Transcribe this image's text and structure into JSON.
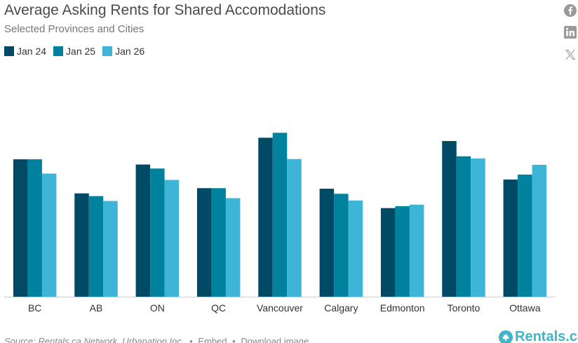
{
  "header": {
    "title": "Average Asking Rents for Shared Accomodations",
    "subtitle": "Selected Provinces and Cities"
  },
  "legend": [
    {
      "label": "Jan 24",
      "color": "#004a66"
    },
    {
      "label": "Jan 25",
      "color": "#00829e"
    },
    {
      "label": "Jan 26",
      "color": "#3eb5d6"
    }
  ],
  "share": {
    "facebook_icon": "facebook-icon",
    "linkedin_icon": "linkedin-icon",
    "x_icon": "x-icon"
  },
  "chart_data": {
    "type": "bar",
    "title": "Average Asking Rents for Shared Accomodations",
    "subtitle": "Selected Provinces and Cities",
    "xlabel": "",
    "ylabel": "",
    "categories": [
      "BC",
      "AB",
      "ON",
      "QC",
      "Vancouver",
      "Calgary",
      "Edmonton",
      "Toronto",
      "Ottawa"
    ],
    "series": [
      {
        "name": "Jan 24",
        "color": "#004a66",
        "values": [
          1000,
          752,
          962,
          790,
          1157,
          786,
          645,
          1133,
          853
        ]
      },
      {
        "name": "Jan 25",
        "color": "#00829e",
        "values": [
          1000,
          732,
          933,
          790,
          1193,
          749,
          659,
          1022,
          889
        ]
      },
      {
        "name": "Jan 26",
        "color": "#3eb5d6",
        "values": [
          896,
          697,
          850,
          717,
          1002,
          700,
          670,
          1006,
          960
        ]
      }
    ],
    "ylim": [
      0,
      1700
    ],
    "grid": false,
    "legend_position": "top-left"
  },
  "footer": {
    "source": "Source: Rentals.ca Network, Urbanation Inc.",
    "separator": "•",
    "embed": "Embed",
    "download": "Download image",
    "logo_text": "Rentals.ca"
  }
}
